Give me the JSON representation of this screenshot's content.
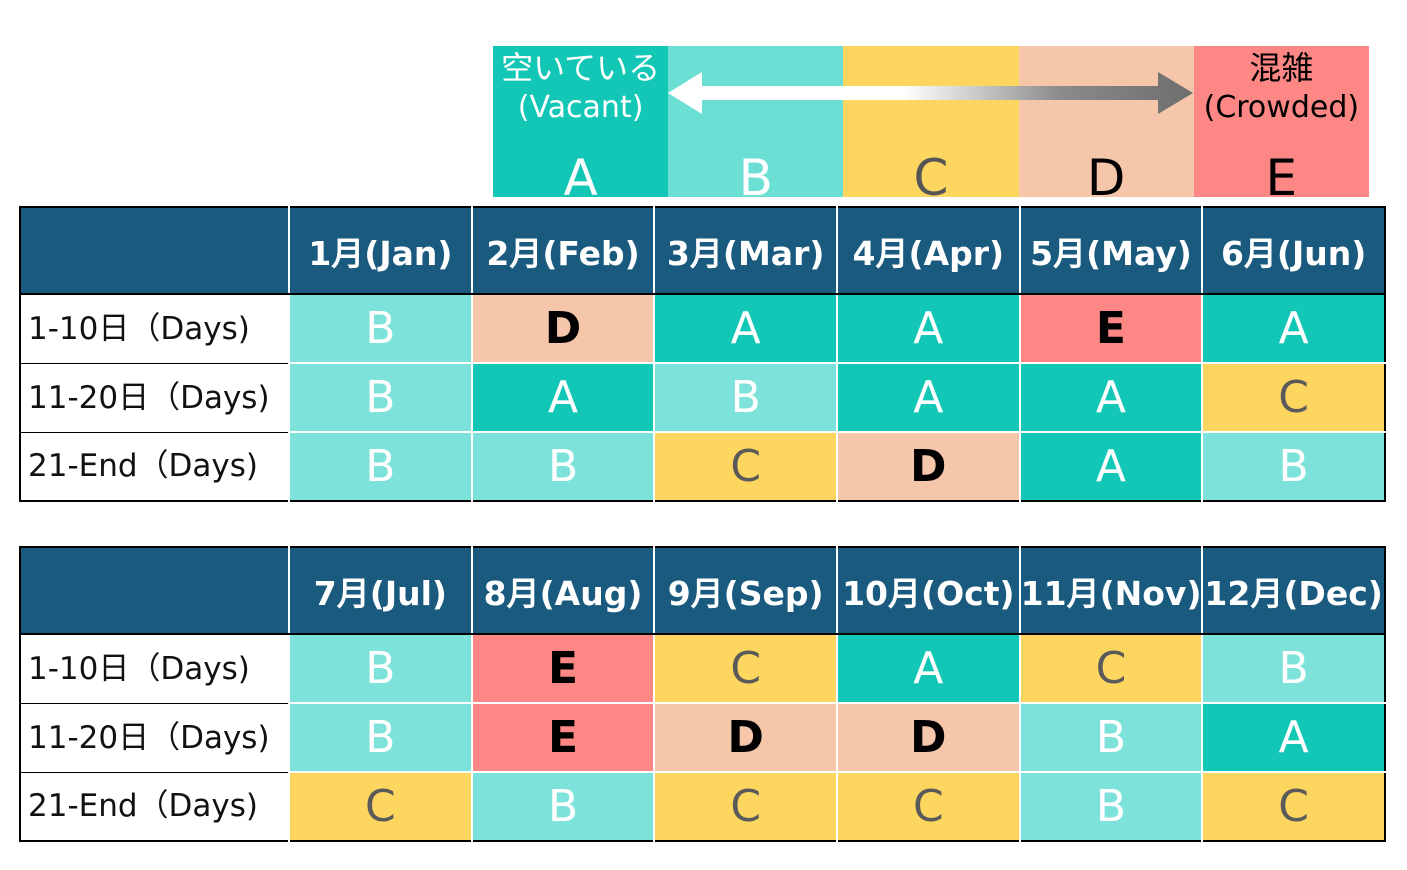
{
  "legend": {
    "levels": [
      {
        "letter": "A",
        "label": "空いている",
        "sub": "(Vacant)"
      },
      {
        "letter": "B"
      },
      {
        "letter": "C"
      },
      {
        "letter": "D"
      },
      {
        "letter": "E",
        "label": "混雑",
        "sub": "(Crowded)"
      }
    ],
    "colors": {
      "A": "#13c7b6",
      "B": "#6cdfd4",
      "C": "#fdd660",
      "D": "#f5c6aa",
      "E": "#fd8785"
    }
  },
  "table1": {
    "months": [
      "1月(Jan)",
      "2月(Feb)",
      "3月(Mar)",
      "4月(Apr)",
      "5月(May)",
      "6月(Jun)"
    ],
    "rows": [
      {
        "label": "1-10日（Days)",
        "values": [
          "B",
          "D",
          "A",
          "A",
          "E",
          "A"
        ]
      },
      {
        "label": "11-20日（Days)",
        "values": [
          "B",
          "A",
          "B",
          "A",
          "A",
          "C"
        ]
      },
      {
        "label": "21-End（Days)",
        "values": [
          "B",
          "B",
          "C",
          "D",
          "A",
          "B"
        ]
      }
    ]
  },
  "table2": {
    "months": [
      "7月(Jul)",
      "8月(Aug)",
      "9月(Sep)",
      "10月(Oct)",
      "11月(Nov)",
      "12月(Dec)"
    ],
    "rows": [
      {
        "label": "1-10日（Days)",
        "values": [
          "B",
          "E",
          "C",
          "A",
          "C",
          "B"
        ]
      },
      {
        "label": "11-20日（Days)",
        "values": [
          "B",
          "E",
          "D",
          "D",
          "B",
          "A"
        ]
      },
      {
        "label": "21-End（Days)",
        "values": [
          "C",
          "B",
          "C",
          "C",
          "B",
          "C"
        ]
      }
    ]
  },
  "header_color": "#1a5a7e"
}
